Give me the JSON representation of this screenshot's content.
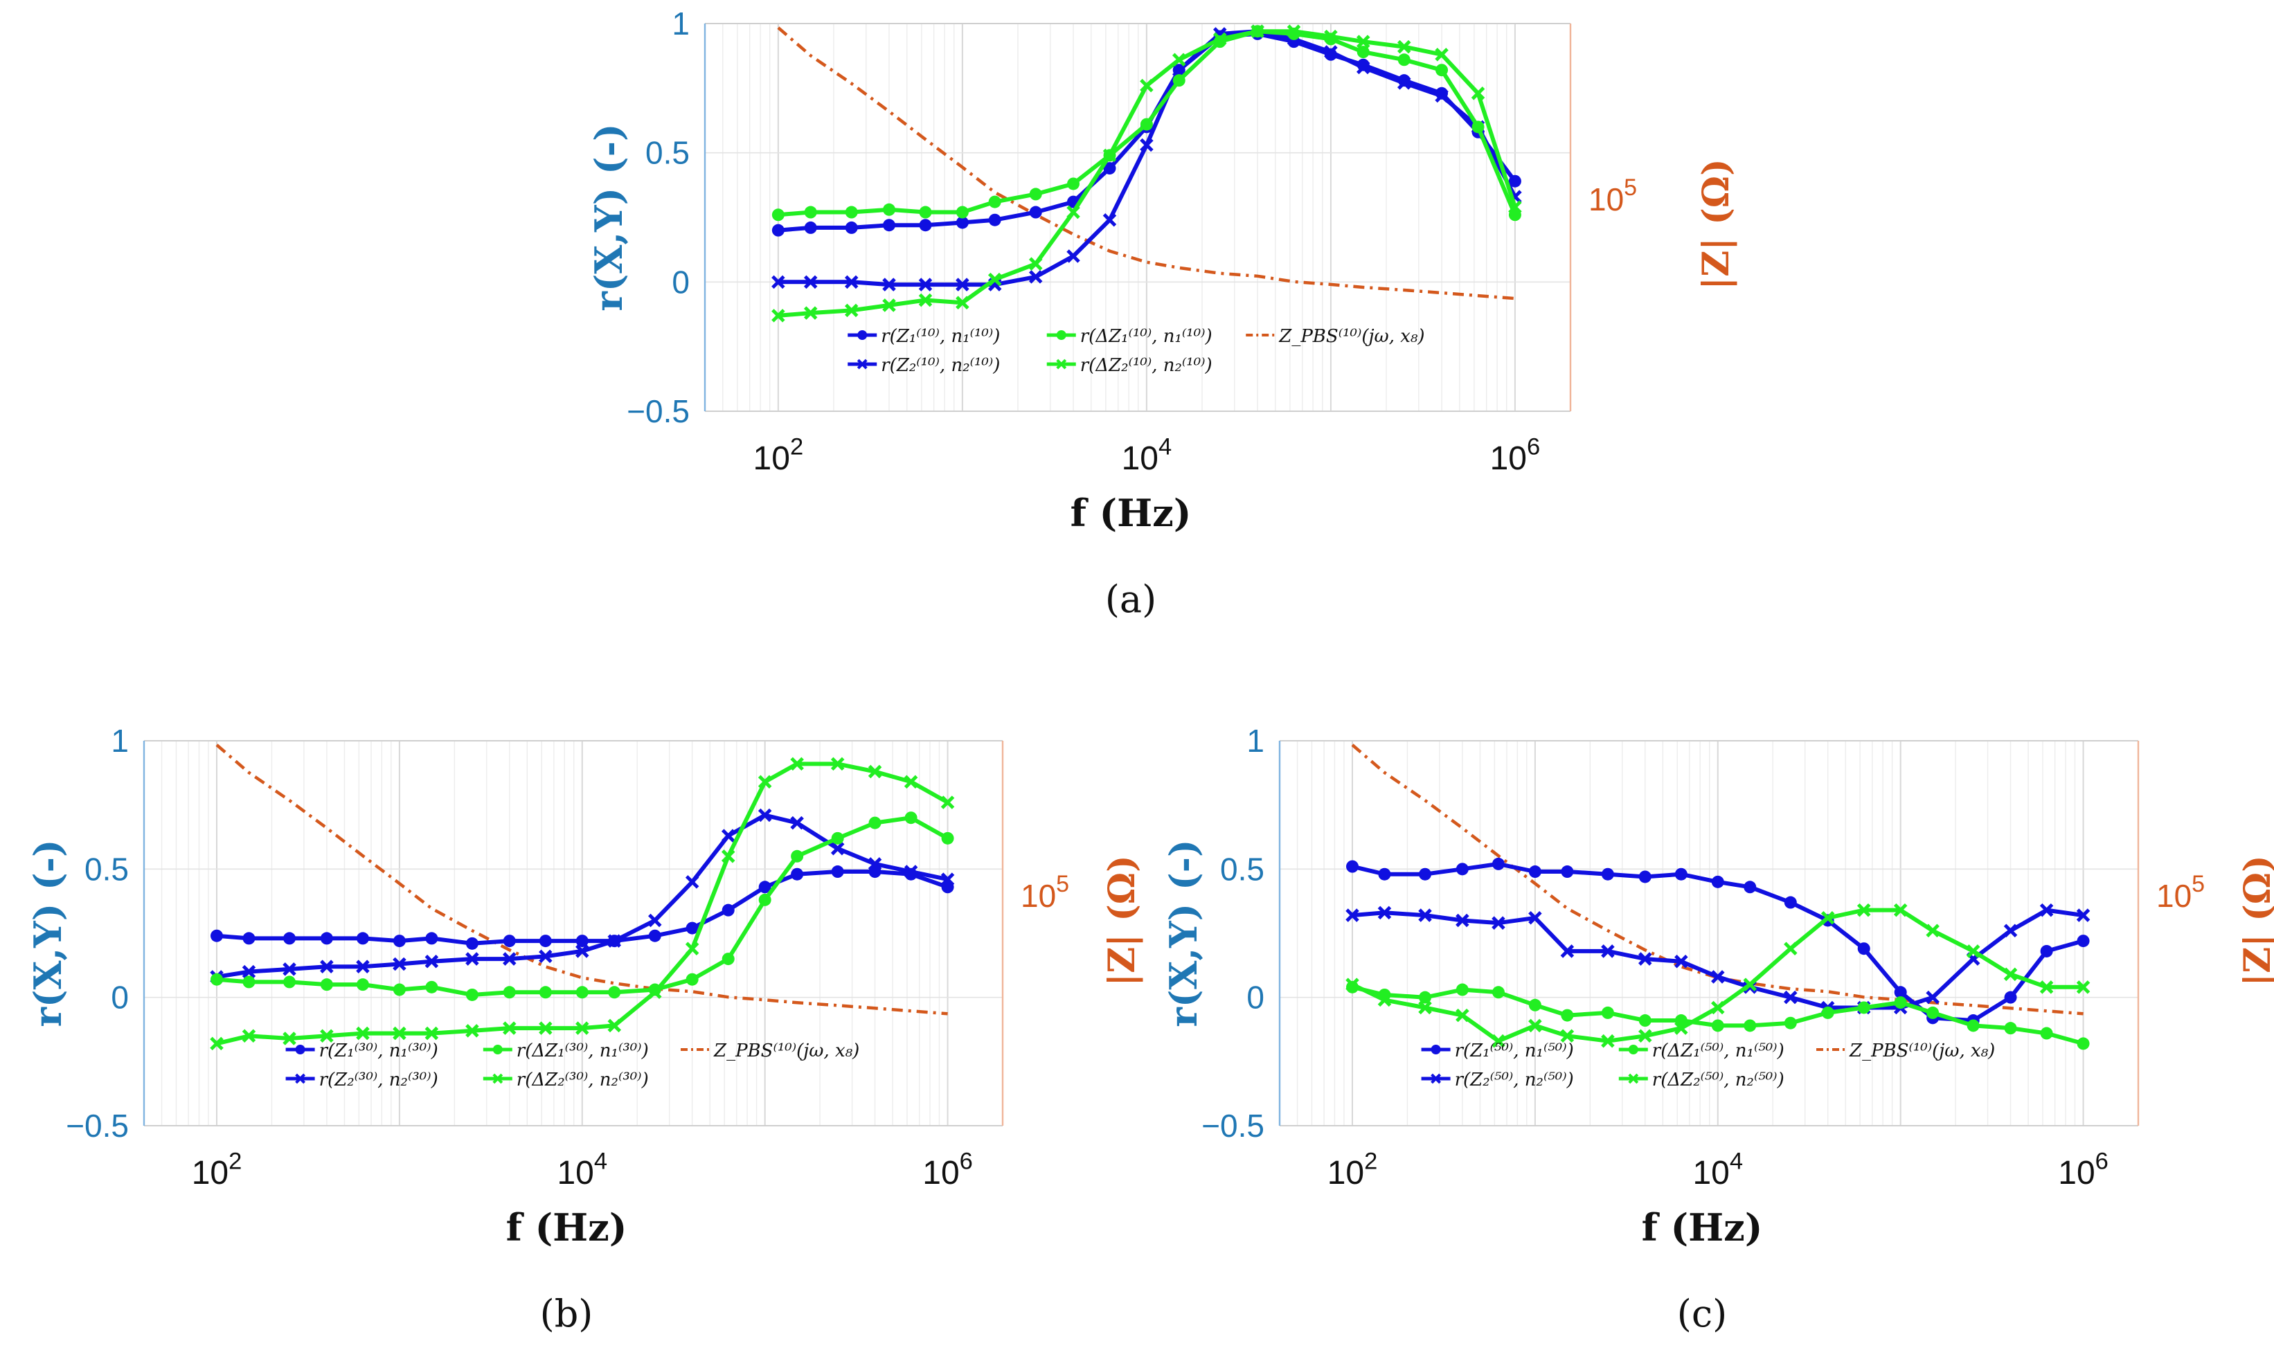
{
  "figure": {
    "captions": [
      "(a)",
      "(b)",
      "(c)"
    ],
    "colors": {
      "blue": "#1010e0",
      "green": "#22ee22",
      "orange": "#d4581c",
      "axis_blue": "#1f77b4"
    }
  },
  "chart_data": [
    {
      "type": "line",
      "panel": "a",
      "caption": "(a)",
      "xlabel": "f (Hz)",
      "ylabel": "r(X,Y) (-)",
      "y2label": "|Z| (Ω)",
      "xscale": "log",
      "xlim": [
        40,
        2000000
      ],
      "ylim": [
        -0.5,
        1
      ],
      "yticks": [
        "1",
        "0.5",
        "0",
        "−0.5"
      ],
      "xticks": [
        "10^2",
        "10^4",
        "10^6"
      ],
      "y2tick": "10^5",
      "legend_position": "lower-center",
      "x": [
        100,
        150,
        250,
        400,
        630,
        1000,
        1500,
        2500,
        4000,
        6300,
        10000,
        15000,
        25000,
        40000,
        63000,
        100000,
        150000,
        250000,
        400000,
        630000,
        1000000
      ],
      "series": [
        {
          "name": "r(Z1^(10), n1^(10))",
          "color": "#1010e0",
          "marker": "circle",
          "values": [
            0.2,
            0.21,
            0.21,
            0.22,
            0.22,
            0.23,
            0.24,
            0.27,
            0.31,
            0.44,
            0.6,
            0.82,
            0.95,
            0.96,
            0.93,
            0.88,
            0.84,
            0.78,
            0.73,
            0.58,
            0.39
          ]
        },
        {
          "name": "r(Z2^(10), n2^(10))",
          "color": "#1010e0",
          "marker": "x",
          "values": [
            0.0,
            0.0,
            0.0,
            -0.01,
            -0.01,
            -0.01,
            -0.01,
            0.02,
            0.1,
            0.24,
            0.53,
            0.82,
            0.96,
            0.97,
            0.94,
            0.89,
            0.83,
            0.77,
            0.72,
            0.6,
            0.33
          ]
        },
        {
          "name": "r(ΔZ1^(10), n1^(10))",
          "color": "#22ee22",
          "marker": "circle",
          "values": [
            0.26,
            0.27,
            0.27,
            0.28,
            0.27,
            0.27,
            0.31,
            0.34,
            0.38,
            0.49,
            0.61,
            0.78,
            0.93,
            0.97,
            0.96,
            0.94,
            0.89,
            0.86,
            0.82,
            0.6,
            0.26
          ]
        },
        {
          "name": "r(ΔZ2^(10), n2^(10))",
          "color": "#22ee22",
          "marker": "x",
          "values": [
            -0.13,
            -0.12,
            -0.11,
            -0.09,
            -0.07,
            -0.08,
            0.01,
            0.07,
            0.27,
            0.49,
            0.76,
            0.86,
            0.94,
            0.97,
            0.97,
            0.95,
            0.93,
            0.91,
            0.88,
            0.73,
            0.29
          ]
        }
      ],
      "impedance_series": {
        "name": "Z_PBS^(10)(jω, x8)",
        "color": "#d4581c",
        "values": [
          1.0,
          0.9,
          0.8,
          0.7,
          0.6,
          0.5,
          0.41,
          0.33,
          0.26,
          0.2,
          0.16,
          0.14,
          0.12,
          0.11,
          0.09,
          0.08,
          0.07,
          0.06,
          0.05,
          0.04,
          0.03
        ]
      },
      "legend": [
        "r(Z₁⁽¹⁰⁾, n₁⁽¹⁰⁾)",
        "r(ΔZ₁⁽¹⁰⁾, n₁⁽¹⁰⁾)",
        "Z_PBS⁽¹⁰⁾(jω, x₈)",
        "r(Z₂⁽¹⁰⁾, n₂⁽¹⁰⁾)",
        "r(ΔZ₂⁽¹⁰⁾, n₂⁽¹⁰⁾)"
      ]
    },
    {
      "type": "line",
      "panel": "b",
      "caption": "(b)",
      "xlabel": "f (Hz)",
      "ylabel": "r(X,Y) (-)",
      "y2label": "|Z| (Ω)",
      "xscale": "log",
      "xlim": [
        40,
        2000000
      ],
      "ylim": [
        -0.5,
        1
      ],
      "yticks": [
        "1",
        "0.5",
        "0",
        "−0.5"
      ],
      "xticks": [
        "10^2",
        "10^4",
        "10^6"
      ],
      "y2tick": "10^5",
      "legend_position": "lower-center",
      "x": [
        100,
        150,
        250,
        400,
        630,
        1000,
        1500,
        2500,
        4000,
        6300,
        10000,
        15000,
        25000,
        40000,
        63000,
        100000,
        150000,
        250000,
        400000,
        630000,
        1000000
      ],
      "series": [
        {
          "name": "r(Z1^(30), n1^(30))",
          "color": "#1010e0",
          "marker": "circle",
          "values": [
            0.24,
            0.23,
            0.23,
            0.23,
            0.23,
            0.22,
            0.23,
            0.21,
            0.22,
            0.22,
            0.22,
            0.22,
            0.24,
            0.27,
            0.34,
            0.43,
            0.48,
            0.49,
            0.49,
            0.48,
            0.43
          ]
        },
        {
          "name": "r(Z2^(30), n2^(30))",
          "color": "#1010e0",
          "marker": "x",
          "values": [
            0.08,
            0.1,
            0.11,
            0.12,
            0.12,
            0.13,
            0.14,
            0.15,
            0.15,
            0.16,
            0.18,
            0.22,
            0.3,
            0.45,
            0.63,
            0.71,
            0.68,
            0.58,
            0.52,
            0.49,
            0.46
          ]
        },
        {
          "name": "r(ΔZ1^(30), n1^(30))",
          "color": "#22ee22",
          "marker": "circle",
          "values": [
            0.07,
            0.06,
            0.06,
            0.05,
            0.05,
            0.03,
            0.04,
            0.01,
            0.02,
            0.02,
            0.02,
            0.02,
            0.03,
            0.07,
            0.15,
            0.38,
            0.55,
            0.62,
            0.68,
            0.7,
            0.62
          ]
        },
        {
          "name": "r(ΔZ2^(30), n2^(30))",
          "color": "#22ee22",
          "marker": "x",
          "values": [
            -0.18,
            -0.15,
            -0.16,
            -0.15,
            -0.14,
            -0.14,
            -0.14,
            -0.13,
            -0.12,
            -0.12,
            -0.12,
            -0.11,
            0.02,
            0.19,
            0.55,
            0.84,
            0.91,
            0.91,
            0.88,
            0.84,
            0.76
          ]
        }
      ],
      "impedance_series": {
        "name": "Z_PBS^(10)(jω, x8)",
        "color": "#d4581c",
        "values": [
          1.0,
          0.9,
          0.8,
          0.7,
          0.6,
          0.5,
          0.41,
          0.33,
          0.26,
          0.2,
          0.16,
          0.14,
          0.12,
          0.11,
          0.09,
          0.08,
          0.07,
          0.06,
          0.05,
          0.04,
          0.03
        ]
      },
      "legend": [
        "r(Z₁⁽³⁰⁾, n₁⁽³⁰⁾)",
        "r(ΔZ₁⁽³⁰⁾, n₁⁽³⁰⁾)",
        "Z_PBS⁽¹⁰⁾(jω, x₈)",
        "r(Z₂⁽³⁰⁾, n₂⁽³⁰⁾)",
        "r(ΔZ₂⁽³⁰⁾, n₂⁽³⁰⁾)"
      ]
    },
    {
      "type": "line",
      "panel": "c",
      "caption": "(c)",
      "xlabel": "f (Hz)",
      "ylabel": "r(X,Y) (-)",
      "y2label": "|Z| (Ω)",
      "xscale": "log",
      "xlim": [
        40,
        2000000
      ],
      "ylim": [
        -0.5,
        1
      ],
      "yticks": [
        "1",
        "0.5",
        "0",
        "−0.5"
      ],
      "xticks": [
        "10^2",
        "10^4",
        "10^6"
      ],
      "y2tick": "10^5",
      "legend_position": "lower-center",
      "x": [
        100,
        150,
        250,
        400,
        630,
        1000,
        1500,
        2500,
        4000,
        6300,
        10000,
        15000,
        25000,
        40000,
        63000,
        100000,
        150000,
        250000,
        400000,
        630000,
        1000000
      ],
      "series": [
        {
          "name": "r(Z1^(50), n1^(50))",
          "color": "#1010e0",
          "marker": "circle",
          "values": [
            0.51,
            0.48,
            0.48,
            0.5,
            0.52,
            0.49,
            0.49,
            0.48,
            0.47,
            0.48,
            0.45,
            0.43,
            0.37,
            0.3,
            0.19,
            0.02,
            -0.08,
            -0.09,
            0.0,
            0.18,
            0.22
          ]
        },
        {
          "name": "r(Z2^(50), n2^(50))",
          "color": "#1010e0",
          "marker": "x",
          "values": [
            0.32,
            0.33,
            0.32,
            0.3,
            0.29,
            0.31,
            0.18,
            0.18,
            0.15,
            0.14,
            0.08,
            0.04,
            0.0,
            -0.04,
            -0.04,
            -0.04,
            0.0,
            0.15,
            0.26,
            0.34,
            0.32
          ]
        },
        {
          "name": "r(ΔZ1^(50), n1^(50))",
          "color": "#22ee22",
          "marker": "circle",
          "values": [
            0.04,
            0.01,
            0.0,
            0.03,
            0.02,
            -0.03,
            -0.07,
            -0.06,
            -0.09,
            -0.09,
            -0.11,
            -0.11,
            -0.1,
            -0.06,
            -0.04,
            -0.02,
            -0.06,
            -0.11,
            -0.12,
            -0.14,
            -0.18
          ]
        },
        {
          "name": "r(ΔZ2^(50), n2^(50))",
          "color": "#22ee22",
          "marker": "x",
          "values": [
            0.05,
            -0.01,
            -0.04,
            -0.07,
            -0.17,
            -0.11,
            -0.15,
            -0.17,
            -0.15,
            -0.12,
            -0.04,
            0.05,
            0.19,
            0.31,
            0.34,
            0.34,
            0.26,
            0.18,
            0.09,
            0.04,
            0.04
          ]
        }
      ],
      "impedance_series": {
        "name": "Z_PBS^(10)(jω, x8)",
        "color": "#d4581c",
        "values": [
          1.0,
          0.9,
          0.8,
          0.7,
          0.6,
          0.5,
          0.41,
          0.33,
          0.26,
          0.2,
          0.16,
          0.14,
          0.12,
          0.11,
          0.09,
          0.08,
          0.07,
          0.06,
          0.05,
          0.04,
          0.03
        ]
      },
      "legend": [
        "r(Z₁⁽⁵⁰⁾, n₁⁽⁵⁰⁾)",
        "r(ΔZ₁⁽⁵⁰⁾, n₁⁽⁵⁰⁾)",
        "Z_PBS⁽¹⁰⁾(jω, x₈)",
        "r(Z₂⁽⁵⁰⁾, n₂⁽⁵⁰⁾)",
        "r(ΔZ₂⁽⁵⁰⁾, n₂⁽⁵⁰⁾)"
      ]
    }
  ]
}
